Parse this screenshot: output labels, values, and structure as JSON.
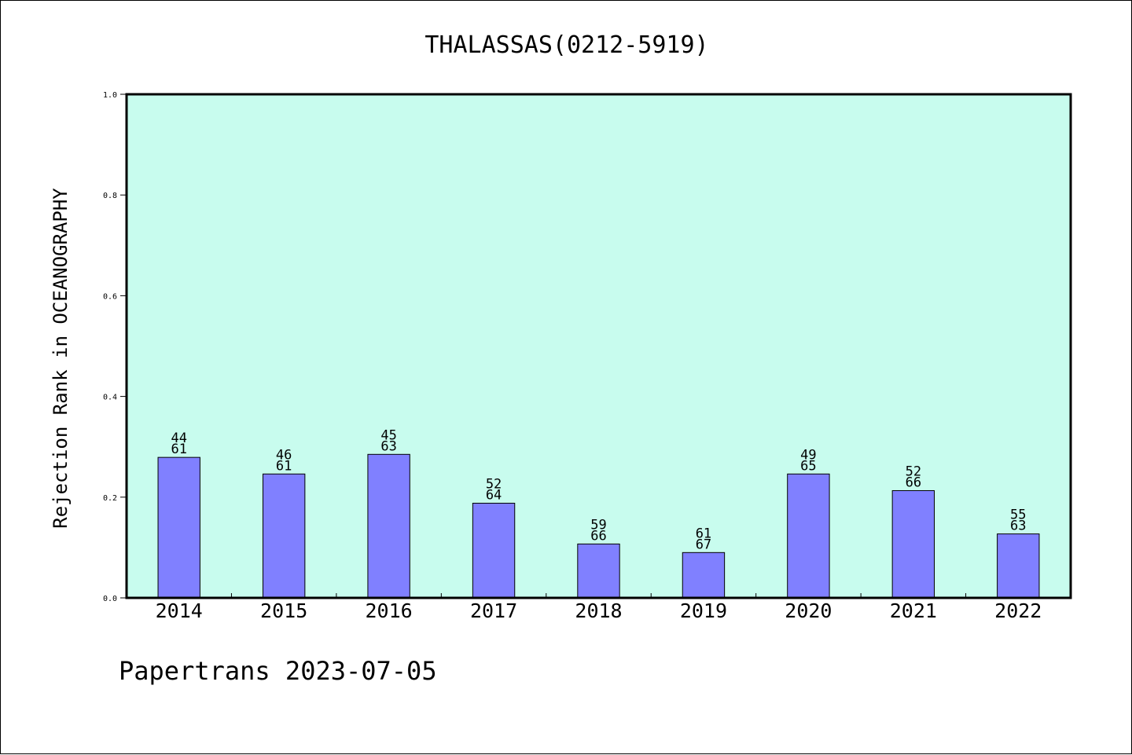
{
  "chart_data": {
    "type": "bar",
    "title": "THALASSAS(0212-5919)",
    "xlabel": "",
    "ylabel": "Rejection Rank in OCEANOGRAPHY",
    "ylim": [
      0,
      1.0
    ],
    "yticks": [
      "0.0",
      "0.2",
      "0.4",
      "0.6",
      "0.8",
      "1.0"
    ],
    "grid": false,
    "categories": [
      "2014",
      "2015",
      "2016",
      "2017",
      "2018",
      "2019",
      "2020",
      "2021",
      "2022"
    ],
    "values": [
      0.279,
      0.246,
      0.285,
      0.188,
      0.107,
      0.09,
      0.246,
      0.213,
      0.127
    ],
    "label_top": [
      "44",
      "46",
      "45",
      "52",
      "59",
      "61",
      "49",
      "52",
      "55"
    ],
    "label_bottom": [
      "61",
      "61",
      "63",
      "64",
      "66",
      "67",
      "65",
      "66",
      "63"
    ],
    "colors": {
      "plot_background": "#c8fcee",
      "bar_fill": "#8080ff",
      "bar_stroke": "#000000"
    }
  },
  "footer": {
    "text": "Papertrans 2023-07-05"
  }
}
